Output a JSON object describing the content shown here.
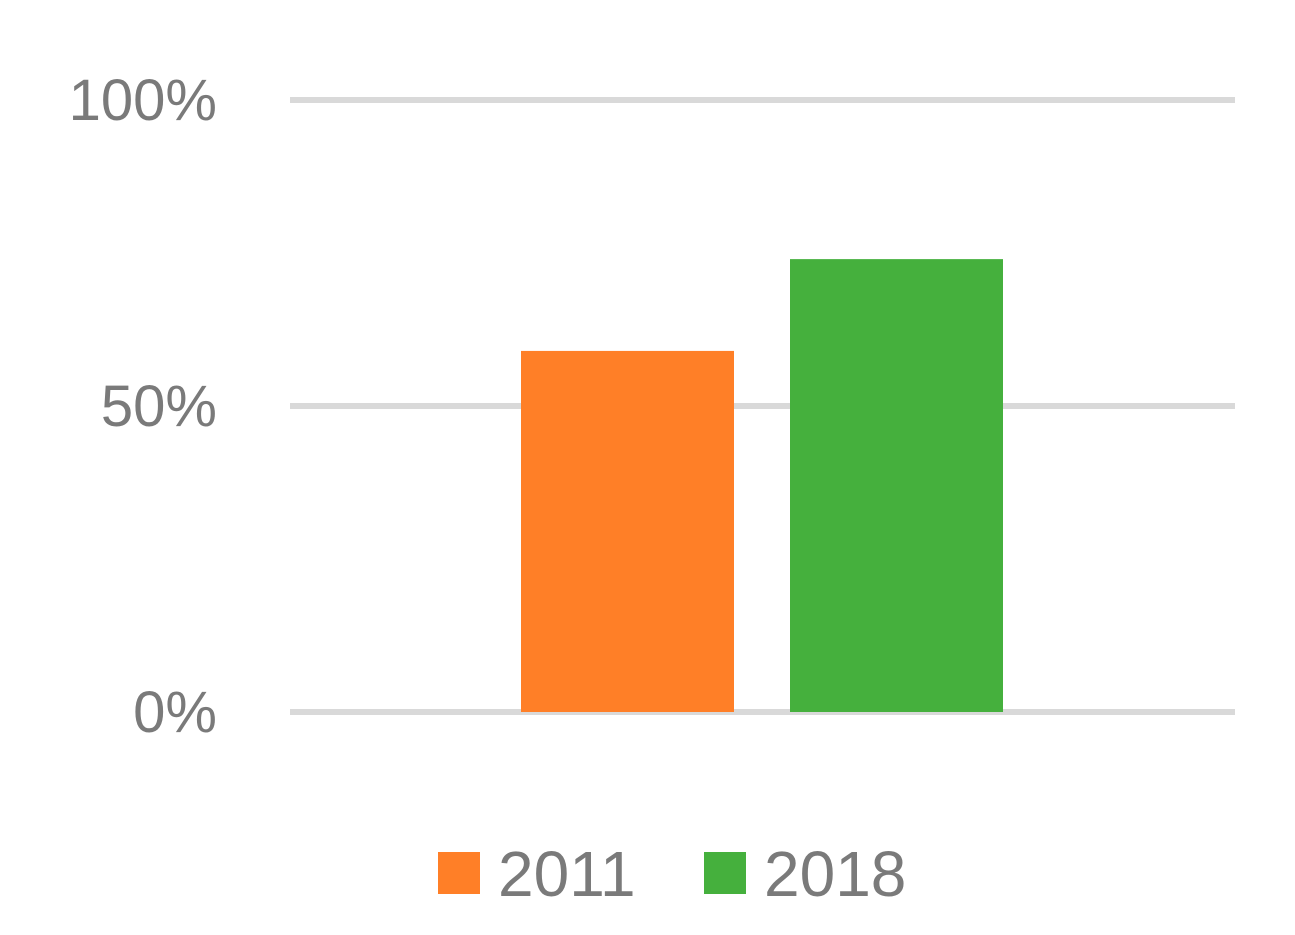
{
  "chart_data": {
    "type": "bar",
    "categories": [
      ""
    ],
    "series": [
      {
        "name": "2011",
        "values": [
          59
        ],
        "color": "#FF7F27"
      },
      {
        "name": "2018",
        "values": [
          74
        ],
        "color": "#45B03D"
      }
    ],
    "ylim": [
      0,
      100
    ],
    "yticks": [
      0,
      50,
      100
    ],
    "ytick_labels": [
      "0%",
      "50%",
      "100%"
    ],
    "grid": true,
    "grid_color": "#d9d9d9",
    "legend_position": "bottom",
    "title": "",
    "xlabel": "",
    "ylabel": ""
  }
}
